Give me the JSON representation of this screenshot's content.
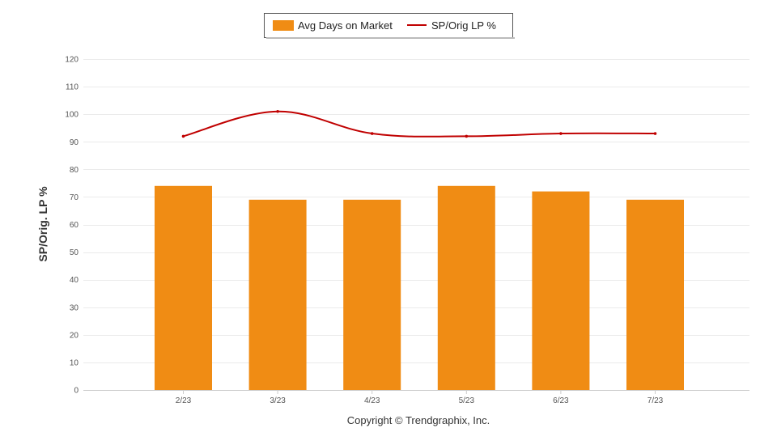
{
  "chart_data": {
    "type": "bar",
    "categories": [
      "2/23",
      "3/23",
      "4/23",
      "5/23",
      "6/23",
      "7/23"
    ],
    "series": [
      {
        "name": "Avg Days on Market",
        "type": "bar",
        "color": "#F08C14",
        "values": [
          74,
          69,
          69,
          74,
          72,
          69
        ]
      },
      {
        "name": "SP/Orig LP %",
        "type": "line",
        "color": "#C00000",
        "values": [
          92,
          101,
          93,
          92,
          93,
          93
        ]
      }
    ],
    "ylabel": "SP/Orig. LP %",
    "ylim": [
      0,
      120
    ],
    "yticks": [
      0,
      10,
      20,
      30,
      40,
      50,
      60,
      70,
      80,
      90,
      100,
      110,
      120
    ],
    "grid": true,
    "legend_position": "top-center"
  },
  "footer": {
    "copyright": "Copyright © Trendgraphix, Inc."
  }
}
